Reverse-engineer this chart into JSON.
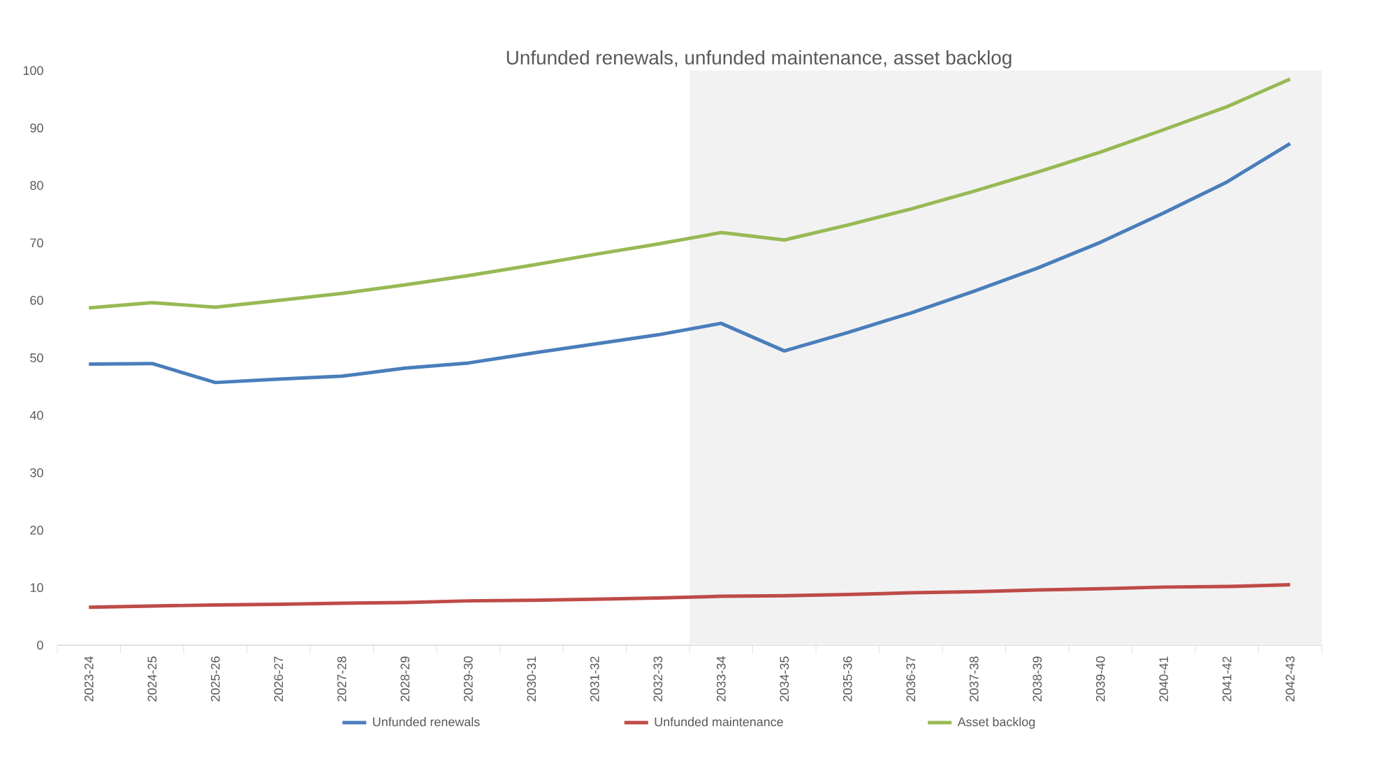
{
  "chart_data": {
    "type": "line",
    "title": "Unfunded renewals, unfunded maintenance, asset backlog",
    "categories": [
      "2023-24",
      "2024-25",
      "2025-26",
      "2026-27",
      "2027-28",
      "2028-29",
      "2029-30",
      "2030-31",
      "2031-32",
      "2032-33",
      "2033-34",
      "2034-35",
      "2035-36",
      "2036-37",
      "2037-38",
      "2038-39",
      "2039-40",
      "2040-41",
      "2041-42",
      "2042-43"
    ],
    "series": [
      {
        "name": "Unfunded renewals",
        "color": "#4a7ebb",
        "values": [
          48.9,
          49.0,
          45.7,
          46.3,
          46.8,
          48.2,
          49.1,
          50.8,
          52.4,
          54.0,
          56.0,
          51.2,
          54.4,
          57.8,
          61.6,
          65.6,
          70.1,
          75.2,
          80.6,
          87.3
        ]
      },
      {
        "name": "Unfunded maintenance",
        "color": "#be4b48",
        "values": [
          6.6,
          6.8,
          7.0,
          7.1,
          7.3,
          7.4,
          7.7,
          7.8,
          8.0,
          8.2,
          8.5,
          8.6,
          8.8,
          9.1,
          9.3,
          9.6,
          9.8,
          10.1,
          10.2,
          10.5
        ]
      },
      {
        "name": "Asset backlog",
        "color": "#98b954",
        "values": [
          58.7,
          59.6,
          58.8,
          60.0,
          61.2,
          62.7,
          64.3,
          66.1,
          68.0,
          69.8,
          71.8,
          70.5,
          73.1,
          75.9,
          79.0,
          82.3,
          85.8,
          89.7,
          93.7,
          98.5
        ]
      }
    ],
    "bands": [
      {
        "axis": "x",
        "from": "2033-34",
        "to": "2042-43",
        "color": "#f2f2f2"
      }
    ],
    "ylim": [
      0,
      100
    ],
    "yticks": [
      0,
      10,
      20,
      30,
      40,
      50,
      60,
      70,
      80,
      90,
      100
    ],
    "grid": false,
    "legend": "bottom",
    "marker": "none",
    "line_style": "solid"
  }
}
